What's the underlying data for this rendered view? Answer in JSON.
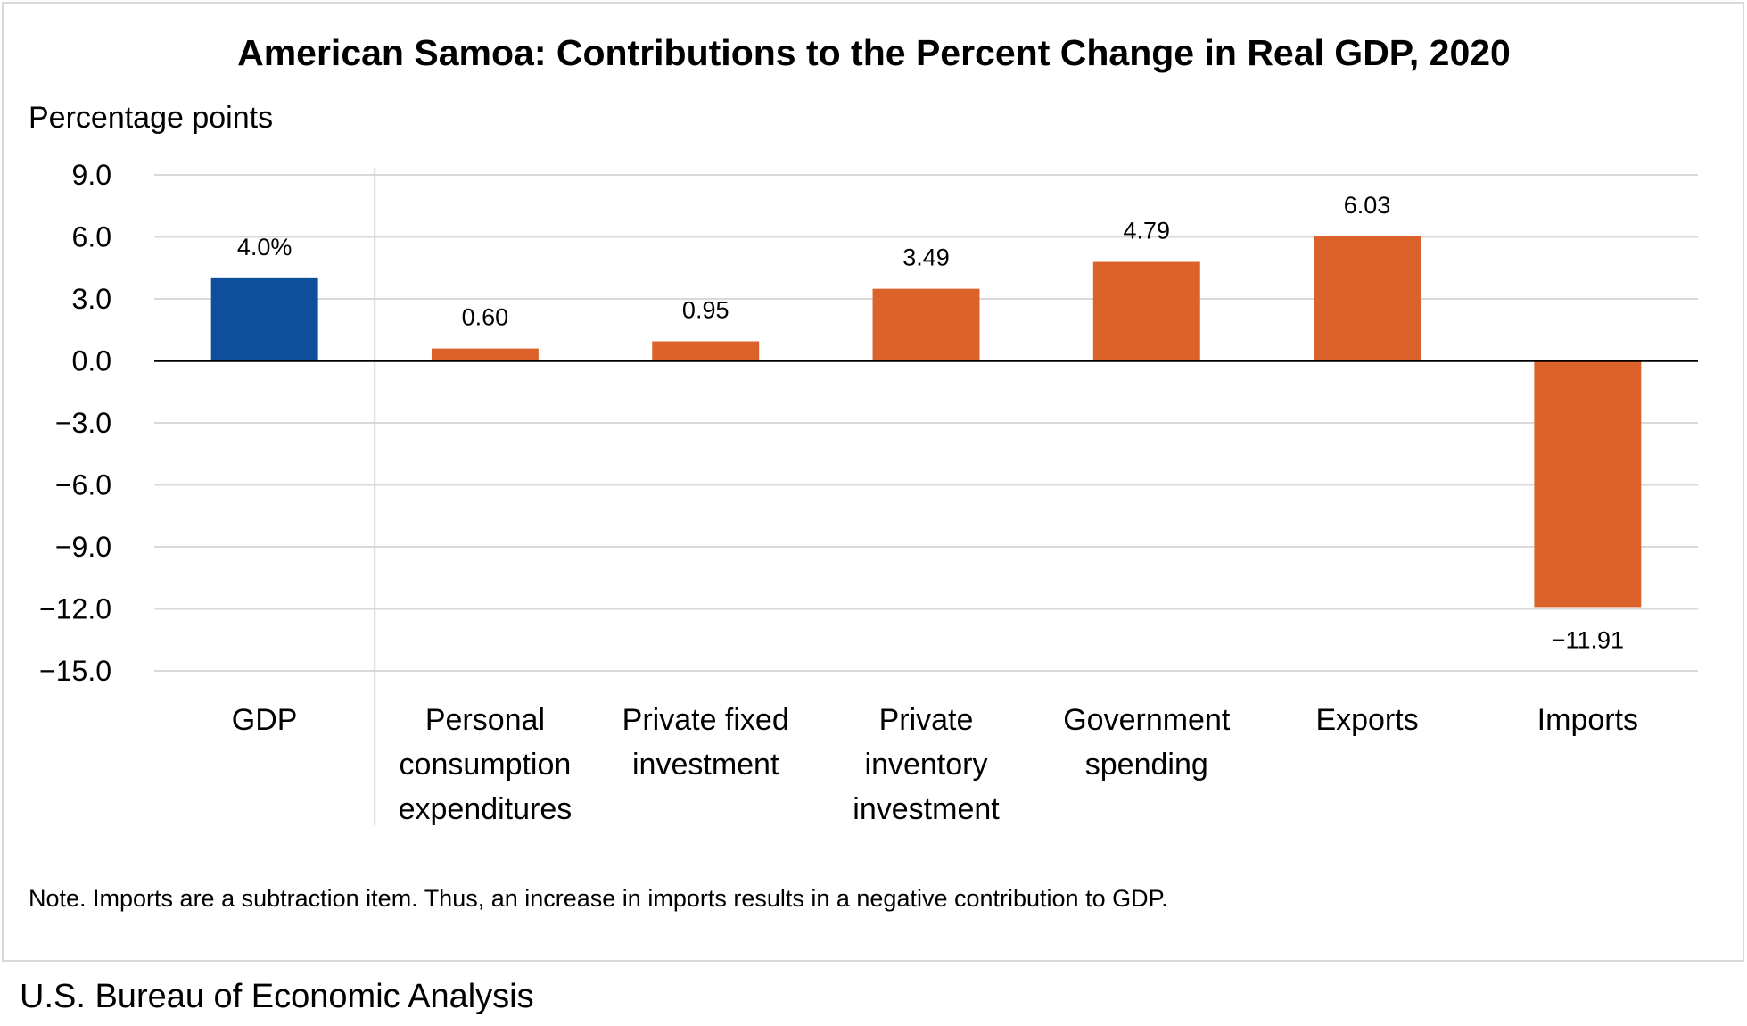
{
  "chart_data": {
    "type": "bar",
    "title": "American Samoa: Contributions to the Percent Change in Real GDP, 2020",
    "ylabel": "Percentage points",
    "xlabel": "",
    "ylim": [
      -15,
      9
    ],
    "yticks": [
      9,
      6,
      3,
      0,
      -3,
      -6,
      -9,
      -12,
      -15
    ],
    "ytick_labels": [
      "9.0",
      "6.0",
      "3.0",
      "0.0",
      "−3.0",
      "−6.0",
      "−9.0",
      "−12.0",
      "−15.0"
    ],
    "grid": true,
    "categories": [
      [
        "GDP"
      ],
      [
        "Personal",
        "consumption",
        "expenditures"
      ],
      [
        "Private fixed",
        "investment"
      ],
      [
        "Private",
        "inventory",
        "investment"
      ],
      [
        "Government",
        "spending"
      ],
      [
        "Exports"
      ],
      [
        "Imports"
      ]
    ],
    "values": [
      4.0,
      0.6,
      0.95,
      3.49,
      4.79,
      6.03,
      -11.91
    ],
    "data_labels": [
      "4.0%",
      "0.60",
      "0.95",
      "3.49",
      "4.79",
      "6.03",
      "−11.91"
    ],
    "colors": [
      "#0d4f9a",
      "#db632b",
      "#db632b",
      "#db632b",
      "#db632b",
      "#db632b",
      "#db632b"
    ]
  },
  "note": "Note. Imports are a subtraction item. Thus, an increase in imports results in a negative contribution to GDP.",
  "source": "U.S. Bureau of Economic Analysis",
  "colors": {
    "grid": "#d9d9d9",
    "zero_line": "#000000",
    "separator": "#d9d9d9"
  }
}
